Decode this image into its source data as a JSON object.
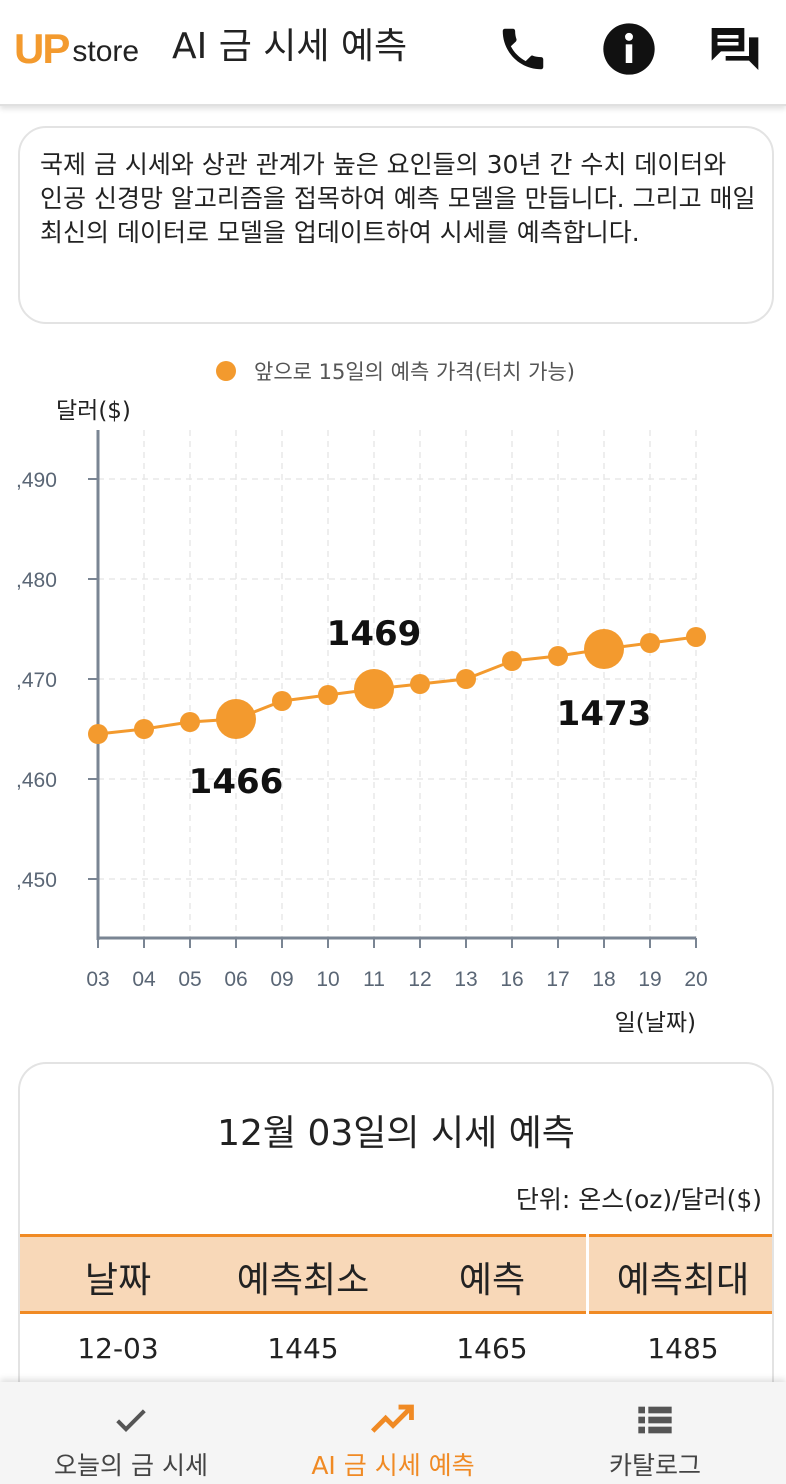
{
  "header": {
    "logo_up": "UP",
    "logo_store": "store",
    "title": "AI 금 시세 예측",
    "icons": [
      "phone-icon",
      "info-icon",
      "chat-icon"
    ]
  },
  "description": "국제 금 시세와 상관 관계가 높은 요인들의 30년 간 수치 데이터와 인공 신경망 알고리즘을 접목하여 예측 모델을 만듭니다. 그리고 매일 최신의 데이터로 모델을 업데이트하여 시세를 예측합니다.",
  "chart_data": {
    "type": "line",
    "legend": "앞으로 15일의 예측 가격(터치 가능)",
    "legend_position": "top",
    "ylabel": "달러($)",
    "xlabel": "일(날짜)",
    "ytick_labels": [
      ",490",
      ",480",
      ",470",
      ",460",
      ",450"
    ],
    "ylim": [
      1444,
      1495
    ],
    "grid": true,
    "color": "#f39a2e",
    "categories": [
      "03",
      "04",
      "05",
      "06",
      "09",
      "10",
      "11",
      "12",
      "13",
      "16",
      "17",
      "18",
      "19",
      "20"
    ],
    "values": [
      1464.5,
      1465,
      1465.7,
      1466,
      1467.8,
      1468.4,
      1469,
      1469.5,
      1470,
      1471.8,
      1472.3,
      1473,
      1473.6,
      1474.2
    ],
    "highlights": [
      {
        "category": "06",
        "label": "1466"
      },
      {
        "category": "11",
        "label": "1469"
      },
      {
        "category": "18",
        "label": "1473"
      }
    ]
  },
  "forecast": {
    "title": "12월 03일의 시세 예측",
    "unit": "단위: 온스(oz)/달러($)",
    "headers": [
      "날짜",
      "예측최소",
      "예측",
      "예측최대"
    ],
    "rows": [
      [
        "12-03",
        "1445",
        "1465",
        "1485"
      ]
    ]
  },
  "tabs": [
    {
      "label": "오늘의 금 시세",
      "icon": "check-icon",
      "active": false
    },
    {
      "label": "AI 금 시세 예측",
      "icon": "trending-up-icon",
      "active": true
    },
    {
      "label": "카탈로그",
      "icon": "list-icon",
      "active": false
    }
  ]
}
